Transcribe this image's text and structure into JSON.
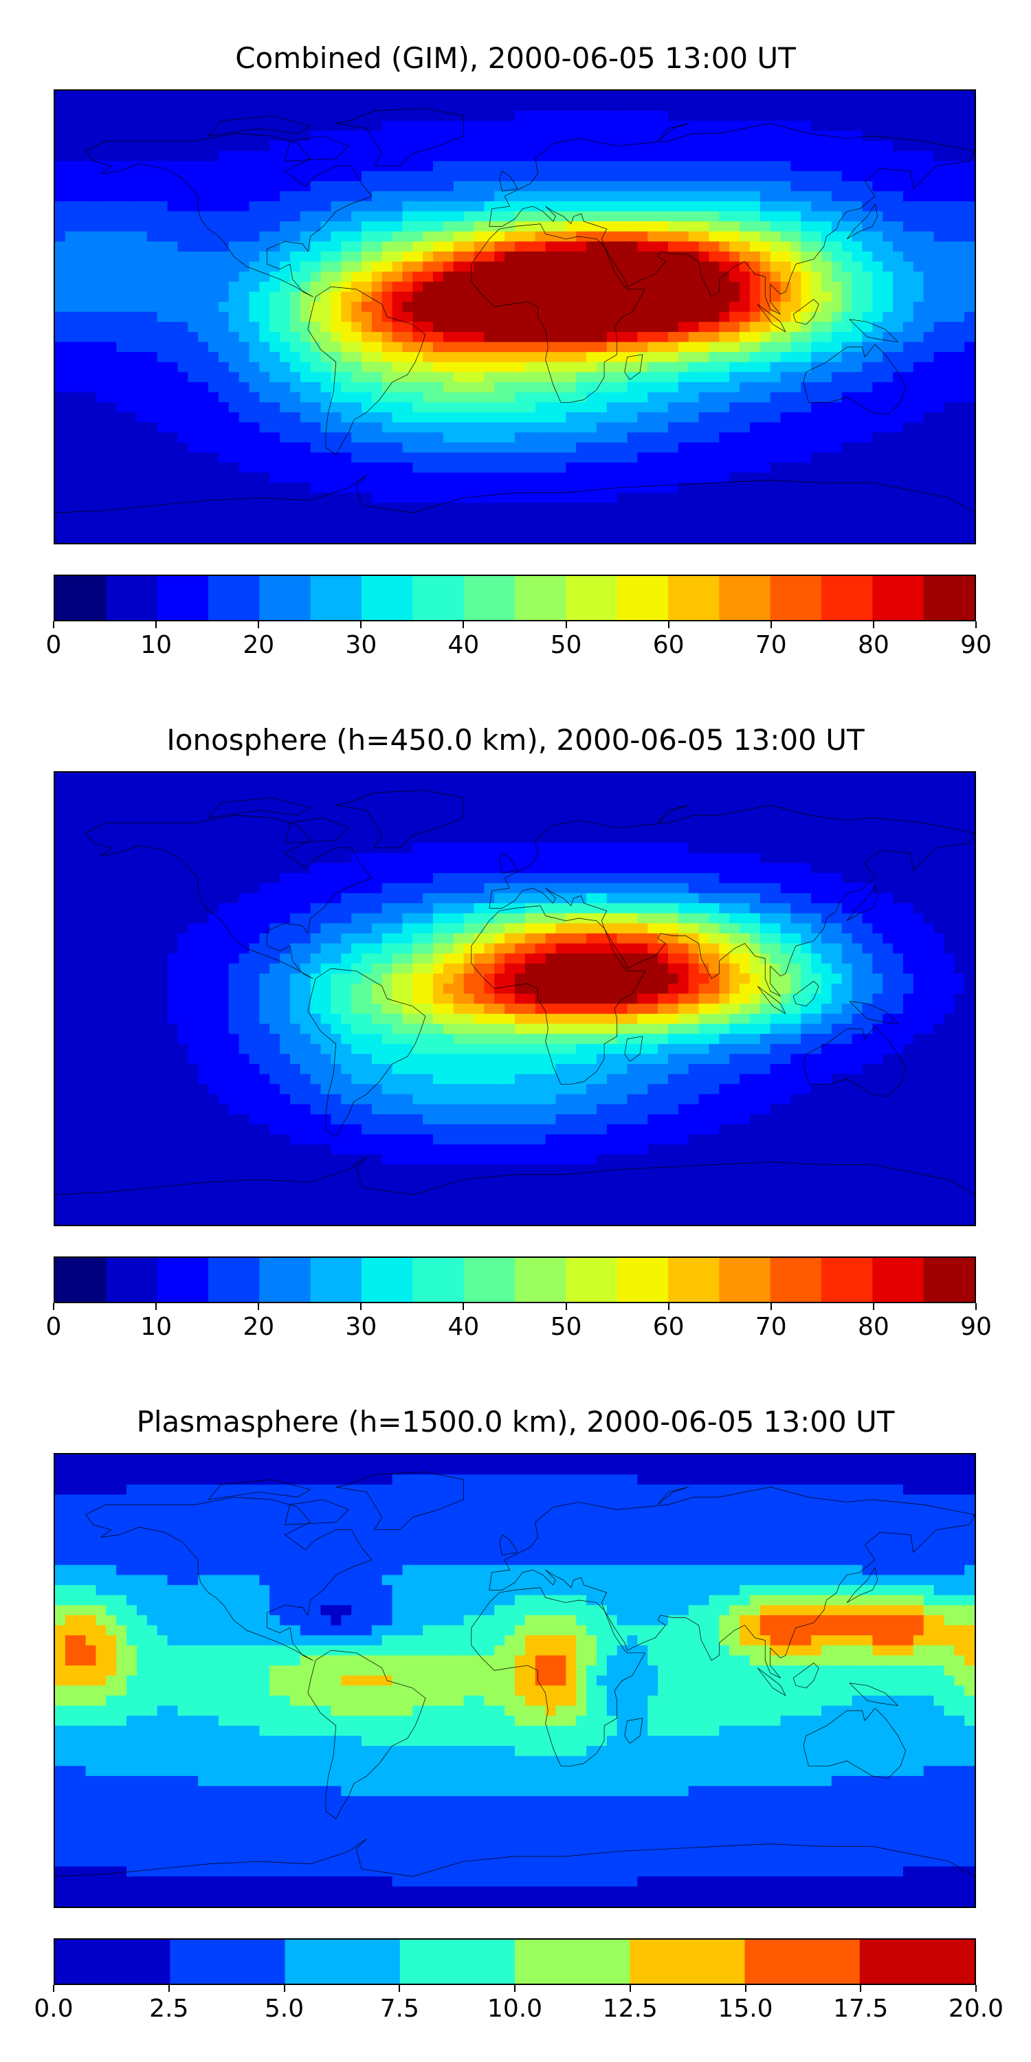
{
  "panels": [
    {
      "title": "Combined (GIM), 2000-06-05 13:00 UT",
      "colorbar": {
        "levels": [
          0,
          5,
          10,
          15,
          20,
          25,
          30,
          35,
          40,
          45,
          50,
          55,
          60,
          65,
          70,
          75,
          80,
          85,
          90
        ],
        "colors": [
          "#00007f",
          "#0000c8",
          "#0000ff",
          "#0040ff",
          "#0080ff",
          "#00b4ff",
          "#00f0f0",
          "#29ffce",
          "#5cff9a",
          "#9aff5c",
          "#ceff29",
          "#f5f500",
          "#ffc400",
          "#ff9400",
          "#ff5a00",
          "#ff2a00",
          "#e40000",
          "#a00000"
        ],
        "tick_labels": [
          "0",
          "10",
          "20",
          "30",
          "40",
          "50",
          "60",
          "70",
          "80",
          "90"
        ]
      },
      "field": {
        "base": 8,
        "blobs": [
          {
            "lon": 25,
            "lat": 3,
            "amp": 62,
            "sx": 55,
            "sy": 12
          },
          {
            "lon": 35,
            "lat": 22,
            "amp": 48,
            "sx": 45,
            "sy": 12
          },
          {
            "lon": 10,
            "lat": 10,
            "amp": 30,
            "sx": 80,
            "sy": 30
          },
          {
            "lon": -50,
            "lat": 0,
            "amp": 18,
            "sx": 35,
            "sy": 22
          },
          {
            "lon": 100,
            "lat": 15,
            "amp": 18,
            "sx": 40,
            "sy": 25
          },
          {
            "lon": -10,
            "lat": -30,
            "amp": 18,
            "sx": 55,
            "sy": 20
          },
          {
            "lon": -160,
            "lat": 20,
            "amp": 12,
            "sx": 25,
            "sy": 20
          }
        ]
      }
    },
    {
      "title": "Ionosphere  (h=450.0 km), 2000-06-05 13:00 UT",
      "colorbar": {
        "levels": [
          0,
          5,
          10,
          15,
          20,
          25,
          30,
          35,
          40,
          45,
          50,
          55,
          60,
          65,
          70,
          75,
          80,
          85,
          90
        ],
        "colors": [
          "#00007f",
          "#0000c8",
          "#0000ff",
          "#0040ff",
          "#0080ff",
          "#00b4ff",
          "#00f0f0",
          "#29ffce",
          "#5cff9a",
          "#9aff5c",
          "#ceff29",
          "#f5f500",
          "#ffc400",
          "#ff9400",
          "#ff5a00",
          "#ff2a00",
          "#e40000",
          "#a00000"
        ],
        "tick_labels": [
          "0",
          "10",
          "20",
          "30",
          "40",
          "50",
          "60",
          "70",
          "80",
          "90"
        ]
      },
      "field": {
        "base": 6,
        "blobs": [
          {
            "lon": 30,
            "lat": 3,
            "amp": 55,
            "sx": 50,
            "sy": 11
          },
          {
            "lon": 35,
            "lat": 22,
            "amp": 40,
            "sx": 40,
            "sy": 11
          },
          {
            "lon": 10,
            "lat": 10,
            "amp": 24,
            "sx": 75,
            "sy": 28
          },
          {
            "lon": -10,
            "lat": -35,
            "amp": 16,
            "sx": 55,
            "sy": 18
          },
          {
            "lon": -60,
            "lat": -5,
            "amp": 10,
            "sx": 30,
            "sy": 20
          },
          {
            "lon": 100,
            "lat": 10,
            "amp": 10,
            "sx": 35,
            "sy": 20
          }
        ]
      }
    },
    {
      "title": "Plasmasphere (h=1500.0 km), 2000-06-05 13:00 UT",
      "colorbar": {
        "levels": [
          0,
          2.5,
          5,
          7.5,
          10,
          12.5,
          15,
          17.5,
          20
        ],
        "colors": [
          "#0000c8",
          "#0040ff",
          "#00b4ff",
          "#29ffce",
          "#9aff5c",
          "#ffc400",
          "#ff5a00",
          "#c80000"
        ],
        "tick_labels": [
          "0.0",
          "2.5",
          "5.0",
          "7.5",
          "10.0",
          "12.5",
          "15.0",
          "17.5",
          "20.0"
        ]
      },
      "field": {
        "base": 2,
        "blobs": [
          {
            "lon": 0,
            "lat": 0,
            "amp": 7,
            "sx": 200,
            "sy": 35
          },
          {
            "lon": 108,
            "lat": 22,
            "amp": 10,
            "sx": 18,
            "sy": 9
          },
          {
            "lon": 150,
            "lat": 22,
            "amp": 10,
            "sx": 15,
            "sy": 9
          },
          {
            "lon": -170,
            "lat": 12,
            "amp": 9,
            "sx": 14,
            "sy": 16
          },
          {
            "lon": 15,
            "lat": 5,
            "amp": 7,
            "sx": 12,
            "sy": 16
          },
          {
            "lon": -60,
            "lat": 0,
            "amp": 4,
            "sx": 30,
            "sy": 10
          },
          {
            "lon": -70,
            "lat": 25,
            "amp": -5,
            "sx": 18,
            "sy": 8
          },
          {
            "lon": 40,
            "lat": 0,
            "amp": -4,
            "sx": 10,
            "sy": 10
          }
        ]
      }
    }
  ]
}
